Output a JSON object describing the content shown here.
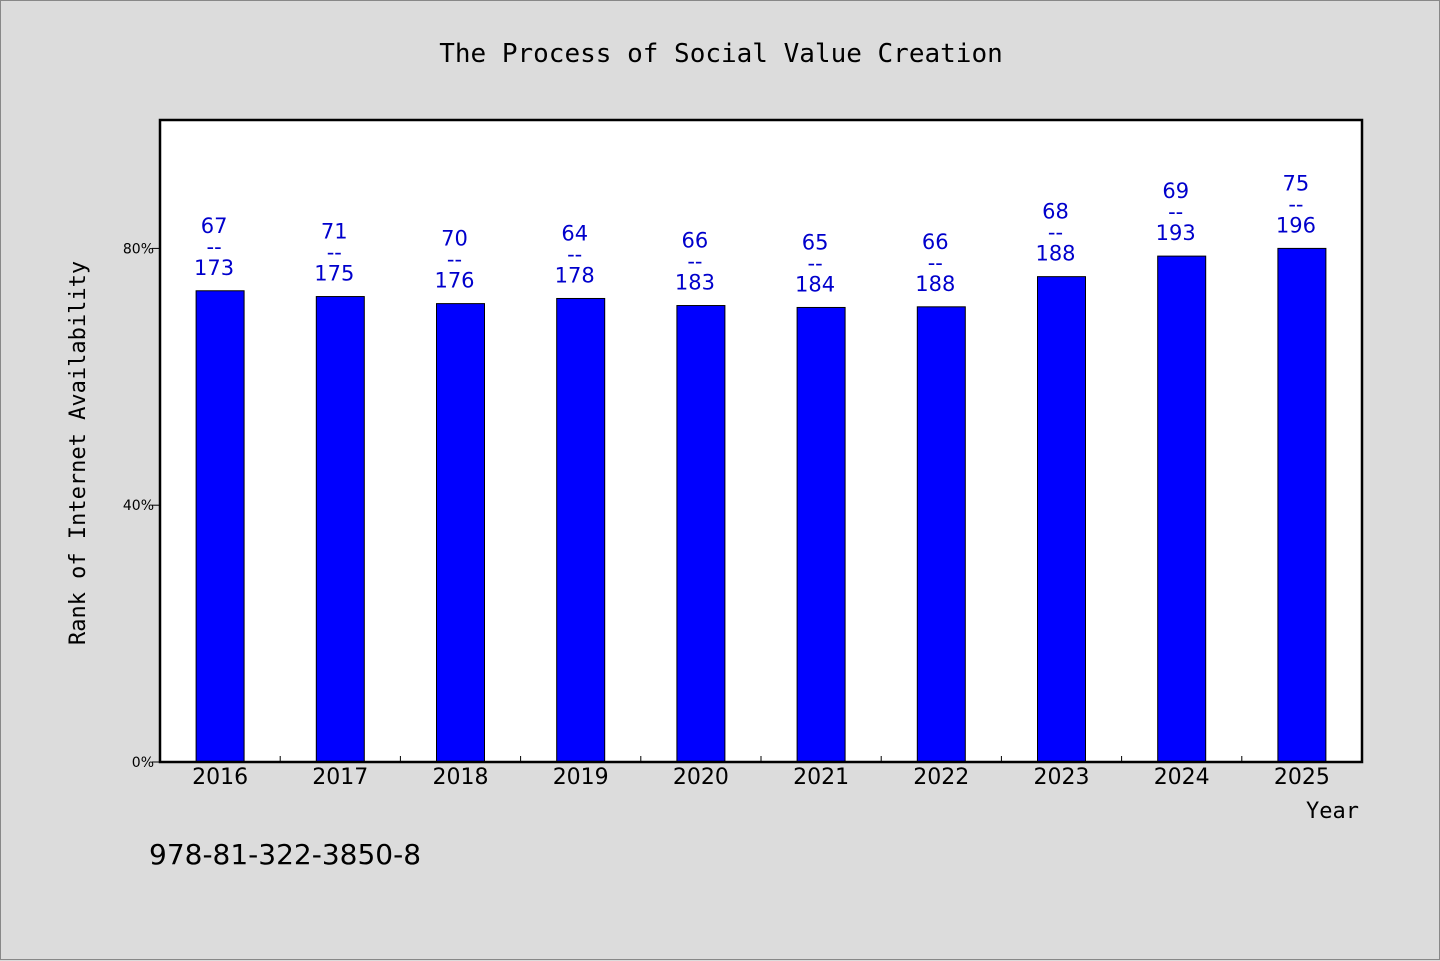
{
  "chart_data": {
    "type": "bar",
    "title": "The Process of Social Value Creation",
    "xlabel": "Year",
    "ylabel": "Rank of Internet Availability",
    "categories": [
      "2016",
      "2017",
      "2018",
      "2019",
      "2020",
      "2021",
      "2022",
      "2023",
      "2024",
      "2025"
    ],
    "values": [
      73.4,
      72.5,
      71.4,
      72.2,
      71.1,
      70.8,
      70.9,
      75.6,
      78.8,
      80.0
    ],
    "labels_top": [
      "67",
      "71",
      "70",
      "64",
      "66",
      "65",
      "66",
      "68",
      "69",
      "75"
    ],
    "labels_bottom": [
      "173",
      "175",
      "176",
      "178",
      "183",
      "184",
      "188",
      "188",
      "193",
      "196"
    ],
    "label_separator": "--",
    "ylim": [
      0,
      100
    ],
    "yticks": [
      0,
      40,
      80
    ],
    "ytick_labels": [
      "0%",
      "40%",
      "80%"
    ],
    "grid": false,
    "legend": "none",
    "bar_color": "#0000ff",
    "label_color": "#0000cc"
  },
  "footer": {
    "isbn": "978-81-322-3850-8"
  }
}
